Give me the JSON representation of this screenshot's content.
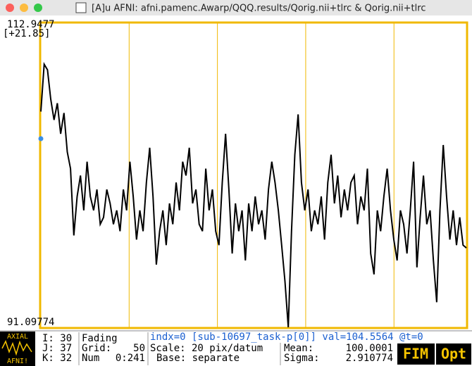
{
  "window": {
    "title": "[A]u AFNI: afni.pamenc.Awarp/QQQ.results/Qorig.nii+tlrc & Qorig.nii+tlrc"
  },
  "chart_data": {
    "type": "line",
    "color": "#000000",
    "frame_color": "#f0b800",
    "ylim": [
      91.09774,
      112.9477
    ],
    "yticks": [
      91.09774,
      112.9477
    ],
    "range_label": "[+21.85]",
    "xlim": [
      0,
      241
    ],
    "grid_x": [
      50,
      100,
      150,
      200
    ],
    "values": [
      106.6,
      110,
      109.6,
      107.5,
      106,
      107.2,
      105,
      106.5,
      103.7,
      102.5,
      97.7,
      100.5,
      102,
      99.5,
      103,
      100.5,
      99.5,
      101,
      98.5,
      99,
      101,
      100,
      98.5,
      99.5,
      98,
      101,
      99.5,
      103,
      100.5,
      97.4,
      99.5,
      98,
      101.5,
      104,
      100.5,
      95.6,
      98,
      99.5,
      97,
      100,
      98.5,
      101.5,
      99.5,
      103,
      102,
      104,
      100,
      101,
      98.5,
      98,
      102.5,
      99.5,
      101,
      98,
      97,
      101.5,
      105,
      101,
      96.4,
      100,
      98,
      99.5,
      95.9,
      100,
      98,
      100.5,
      98.5,
      99.5,
      97.4,
      101,
      103,
      101.5,
      99.5,
      97,
      94.4,
      91.1,
      98,
      103.5,
      106.4,
      101.5,
      99.5,
      101,
      98,
      99.5,
      98.5,
      100.5,
      97.4,
      101.5,
      103.5,
      100,
      102,
      99,
      101,
      99.5,
      101.5,
      102,
      98.5,
      100.5,
      99.5,
      102.5,
      96.4,
      94.9,
      99.5,
      98,
      100.5,
      102.5,
      99.5,
      97.4,
      95.9,
      99.5,
      98.5,
      96.4,
      99.5,
      103,
      95.4,
      99,
      102,
      98.5,
      99.5,
      95.9,
      92.9,
      99.5,
      104.2,
      100.5,
      97.4,
      99.5,
      97,
      99,
      97,
      96.8
    ]
  },
  "status": {
    "icon_top": "AXIAL",
    "icon_bottom": "AFNI!",
    "i": "I: 30",
    "j": "J: 37",
    "k": "K: 32",
    "fading": "Fading",
    "grid_label": "Grid:",
    "grid_value": "50",
    "num_label": "Num",
    "num_value": "0:241",
    "index_info": "indx=0 [sub-10697_task-p[0]] val=104.5564 @t=0",
    "scale": "Scale: 20 pix/datum",
    "base": "Base: separate",
    "mean_label": "Mean:",
    "mean_value": "100.0001",
    "sigma_label": "Sigma:",
    "sigma_value": "2.910774",
    "fim": "FIM",
    "opt": "Opt"
  }
}
